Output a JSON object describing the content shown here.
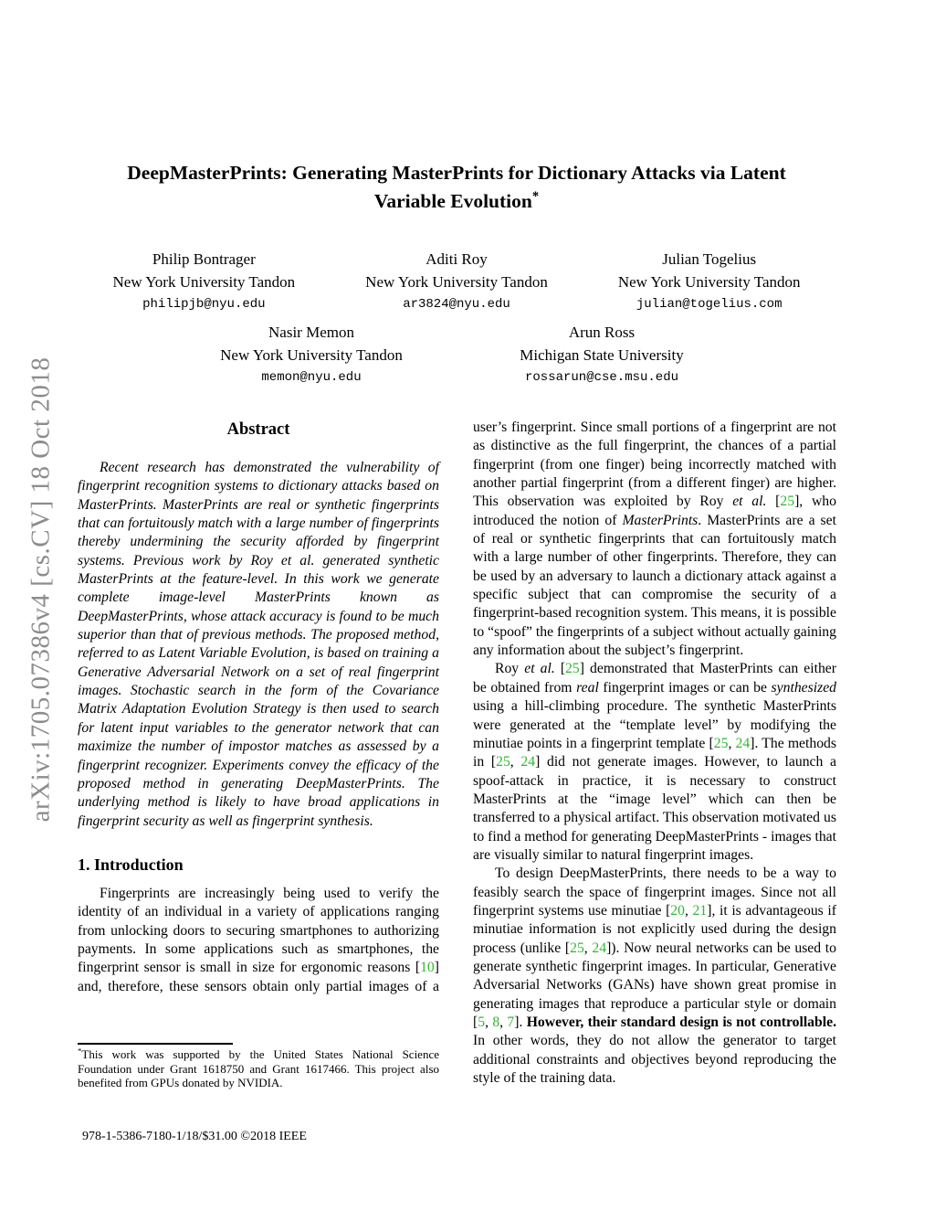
{
  "colors": {
    "citation": "#30b830",
    "stamp": "#8c8c8c"
  },
  "stamp": {
    "text": "arXiv:1705.07386v4 [cs.CV] 18 Oct 2018"
  },
  "title": {
    "line1": "DeepMasterPrints: Generating MasterPrints for Dictionary Attacks via Latent",
    "line2": [
      {
        "t": "Variable Evolution"
      },
      {
        "t": "*",
        "s": "sup"
      }
    ]
  },
  "authors": [
    {
      "name": "Philip Bontrager",
      "affiliation": "New York University Tandon",
      "email": "philipjb@nyu.edu"
    },
    {
      "name": "Aditi Roy",
      "affiliation": "New York University Tandon",
      "email": "ar3824@nyu.edu"
    },
    {
      "name": "Julian Togelius",
      "affiliation": "New York University Tandon",
      "email": "julian@togelius.com"
    },
    {
      "name": "Nasir Memon",
      "affiliation": "New York University Tandon",
      "email": "memon@nyu.edu"
    },
    {
      "name": "Arun Ross",
      "affiliation": "Michigan State University",
      "email": "rossarun@cse.msu.edu"
    }
  ],
  "abstract": {
    "heading": "Abstract",
    "text": "Recent research has demonstrated the vulnerability of fingerprint recognition systems to dictionary attacks based on MasterPrints. MasterPrints are real or synthetic fingerprints that can fortuitously match with a large number of fingerprints thereby undermining the security afforded by fingerprint systems. Previous work by Roy et al. generated synthetic MasterPrints at the feature-level. In this work we generate complete image-level MasterPrints known as DeepMasterPrints, whose attack accuracy is found to be much superior than that of previous methods. The proposed method, referred to as Latent Variable Evolution, is based on training a Generative Adversarial Network on a set of real fingerprint images. Stochastic search in the form of the Covariance Matrix Adaptation Evolution Strategy is then used to search for latent input variables to the generator network that can maximize the number of impostor matches as assessed by a fingerprint recognizer. Experiments convey the efficacy of the proposed method in generating DeepMasterPrints. The underlying method is likely to have broad applications in fingerprint security as well as fingerprint synthesis."
  },
  "introduction": {
    "heading": "1. Introduction",
    "paragraph": [
      {
        "t": "Fingerprints are increasingly being used to verify the identity of an individual in a variety of applications ranging from unlocking doors to securing smartphones to authorizing payments. In some applications such as smartphones, the fingerprint sensor is small in size for ergonomic reasons ["
      },
      {
        "t": "10",
        "s": "g"
      },
      {
        "t": "] and, therefore, these sensors obtain only partial images of a"
      }
    ]
  },
  "right_column": {
    "p1": [
      {
        "t": "user’s fingerprint. Since small portions of a fingerprint are not as distinctive as the full fingerprint, the chances of a partial fingerprint (from one finger) being incorrectly matched with another partial fingerprint (from a different finger) are higher. This observation was exploited by Roy "
      },
      {
        "t": "et al.",
        "s": "i"
      },
      {
        "t": " ["
      },
      {
        "t": "25",
        "s": "g"
      },
      {
        "t": "], who introduced the notion of "
      },
      {
        "t": "MasterPrints",
        "s": "i"
      },
      {
        "t": ". MasterPrints are a set of real or synthetic fingerprints that can fortuitously match with a large number of other fingerprints. Therefore, they can be used by an adversary to launch a dictionary attack against a specific subject that can compromise the security of a fingerprint-based recognition system. This means, it is possible to “spoof” the fingerprints of a subject without actually gaining any information about the subject’s fingerprint."
      }
    ],
    "p2": [
      {
        "t": "Roy "
      },
      {
        "t": "et al.",
        "s": "i"
      },
      {
        "t": " ["
      },
      {
        "t": "25",
        "s": "g"
      },
      {
        "t": "] demonstrated that MasterPrints can either be obtained from "
      },
      {
        "t": "real",
        "s": "i"
      },
      {
        "t": " fingerprint images or can be "
      },
      {
        "t": "synthesized",
        "s": "i"
      },
      {
        "t": " using a hill-climbing procedure. The synthetic MasterPrints were generated at the “template level” by modifying the minutiae points in a fingerprint template ["
      },
      {
        "t": "25",
        "s": "g"
      },
      {
        "t": ", "
      },
      {
        "t": "24",
        "s": "g"
      },
      {
        "t": "]. The methods in ["
      },
      {
        "t": "25",
        "s": "g"
      },
      {
        "t": ", "
      },
      {
        "t": "24",
        "s": "g"
      },
      {
        "t": "] did not generate images. However, to launch a spoof-attack in practice, it is necessary to construct MasterPrints at the “image level” which can then be transferred to a physical artifact. This observation motivated us to find a method for generating DeepMasterPrints - images that are visually similar to natural fingerprint images."
      }
    ],
    "p3": [
      {
        "t": "To design DeepMasterPrints, there needs to be a way to feasibly search the space of fingerprint images. Since not all fingerprint systems use minutiae ["
      },
      {
        "t": "20",
        "s": "g"
      },
      {
        "t": ", "
      },
      {
        "t": "21",
        "s": "g"
      },
      {
        "t": "], it is advantageous if minutiae information is not explicitly used during the design process (unlike ["
      },
      {
        "t": "25",
        "s": "g"
      },
      {
        "t": ", "
      },
      {
        "t": "24",
        "s": "g"
      },
      {
        "t": "]). Now neural networks can be used to generate synthetic fingerprint images. In particular, Generative Adversarial Networks (GANs) have shown great promise in generating images that reproduce a particular style or domain ["
      },
      {
        "t": "5",
        "s": "g"
      },
      {
        "t": ", "
      },
      {
        "t": "8",
        "s": "g"
      },
      {
        "t": ", "
      },
      {
        "t": "7",
        "s": "g"
      },
      {
        "t": "]. "
      },
      {
        "t": "However, their standard design is not controllable.",
        "s": "b"
      },
      {
        "t": " In other words, they do not allow the generator to target additional constraints and objectives beyond reproducing the style of the training data."
      }
    ]
  },
  "footnote": {
    "text": [
      {
        "t": "*",
        "s": "sup"
      },
      {
        "t": "This work was supported by the United States National Science Foundation under Grant 1618750 and Grant 1617466. This project also benefited from GPUs donated by NVIDIA."
      }
    ]
  },
  "copyright": "978-1-5386-7180-1/18/$31.00 ©2018 IEEE"
}
